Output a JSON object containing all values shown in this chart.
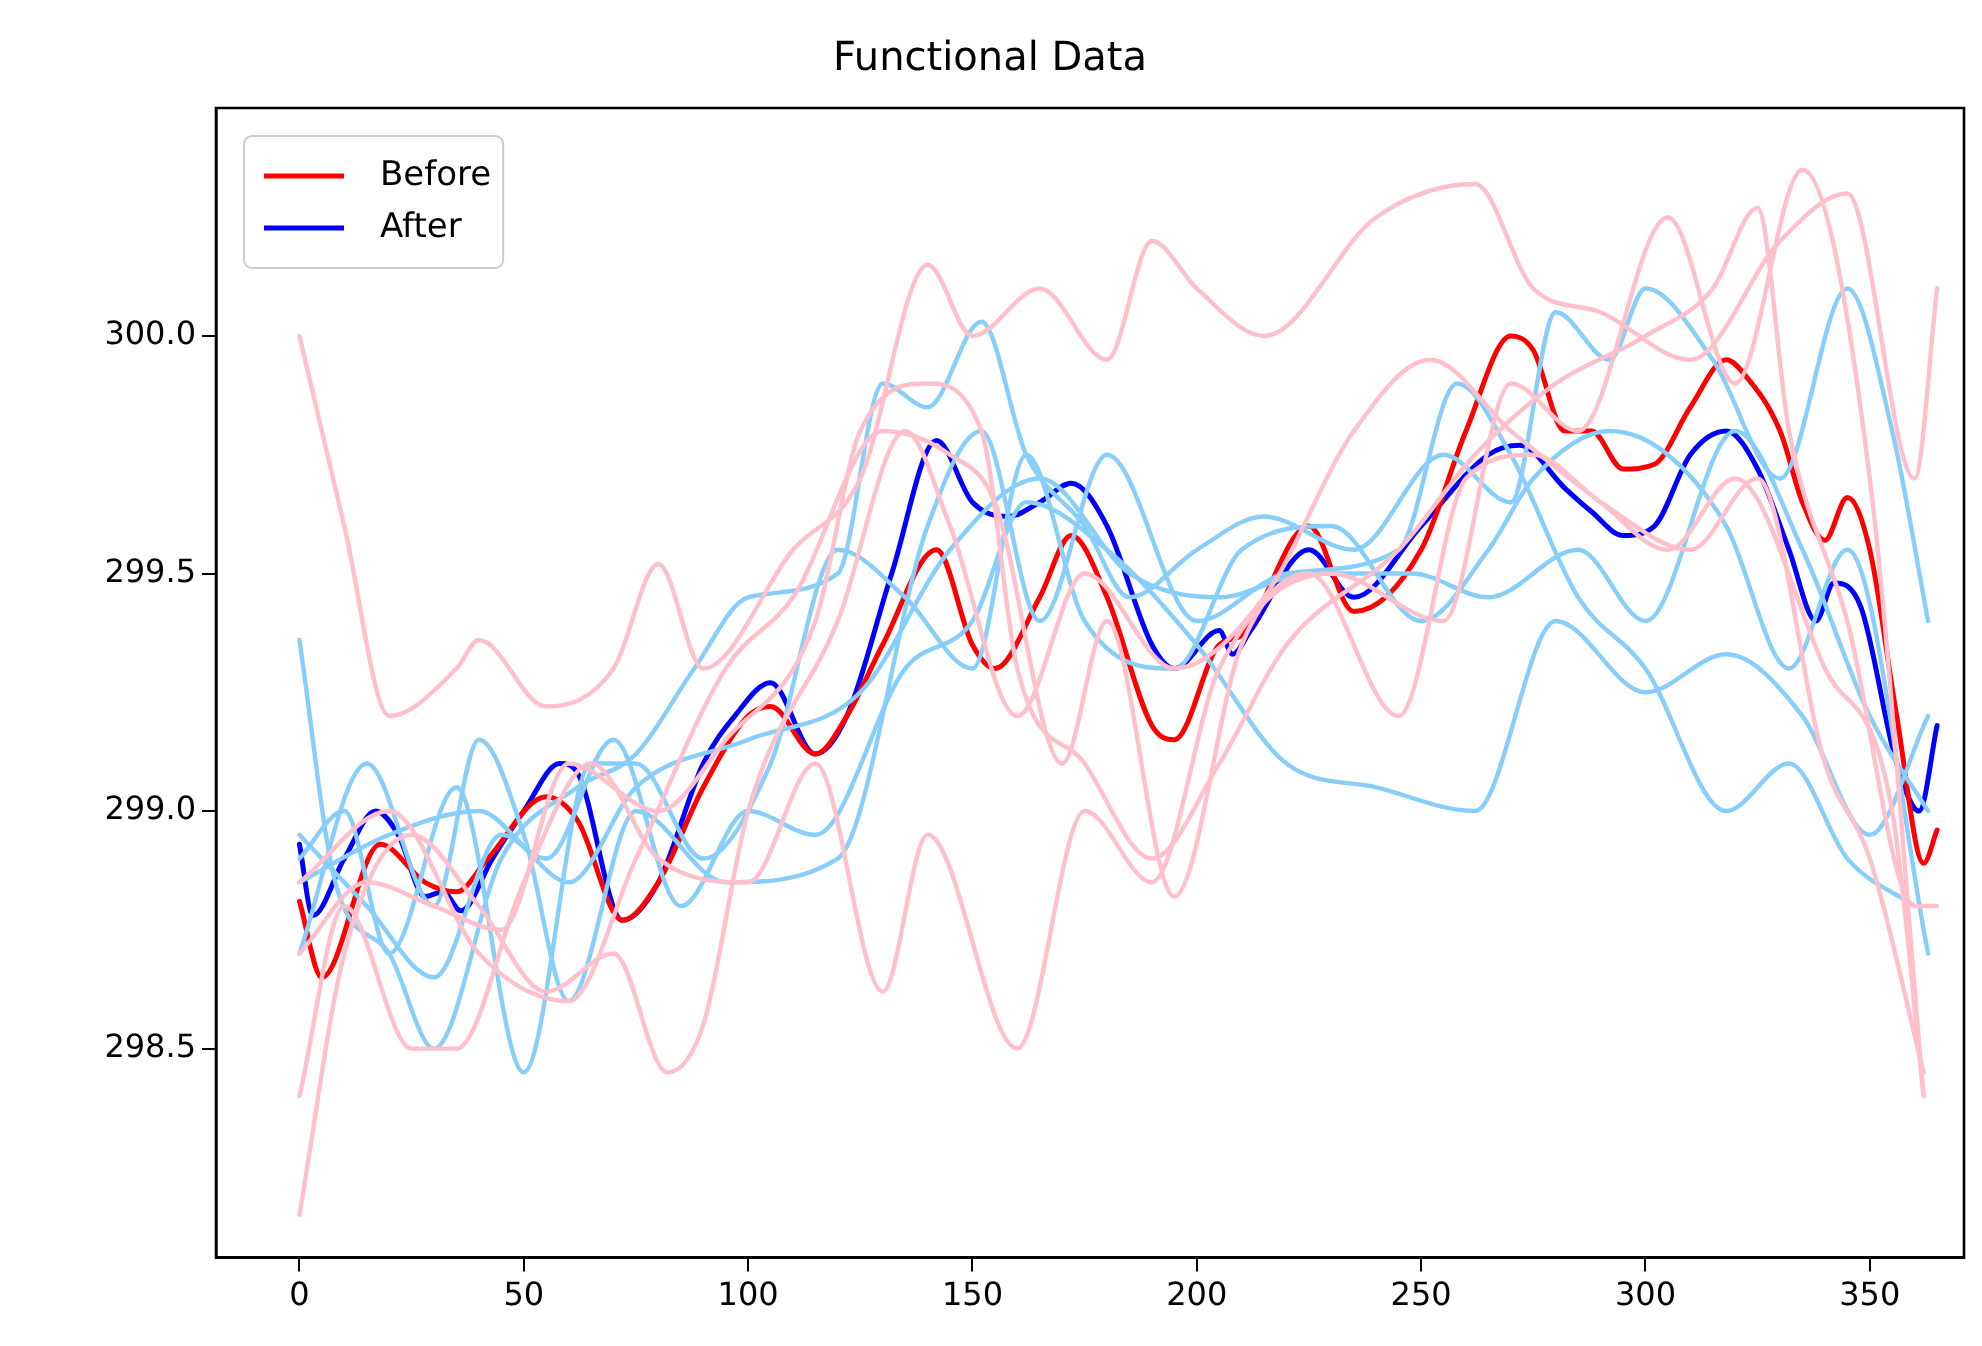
{
  "chart_data": {
    "type": "line",
    "title": "Functional Data",
    "marker": "none",
    "line_style": "solid",
    "grid": false,
    "legend": "top left",
    "xlim": [
      -18.6,
      371
    ],
    "xticks": [
      0,
      50,
      100,
      150,
      200,
      250,
      300,
      350
    ],
    "ylim": [
      298.06,
      300.48
    ],
    "yticks": [
      {
        "value": 298.5,
        "label": "298.5"
      },
      {
        "value": 299,
        "label": "299.0"
      },
      {
        "value": 299.5,
        "label": "299.5"
      },
      {
        "value": 300,
        "label": "300.0"
      }
    ],
    "series": [
      {
        "color": "#ffc0cb",
        "x": [
          0,
          10,
          20,
          35,
          40,
          55,
          70,
          80,
          90,
          110,
          125,
          140,
          150,
          165,
          180,
          190,
          200,
          215,
          240,
          262,
          275,
          290,
          310,
          330,
          345,
          360,
          365
        ],
        "values": [
          300.0,
          299.6,
          299.2,
          299.3,
          299.36,
          299.22,
          299.3,
          299.52,
          299.3,
          299.55,
          299.7,
          300.15,
          300.0,
          300.1,
          299.95,
          300.2,
          300.1,
          300.0,
          300.25,
          300.32,
          300.1,
          300.05,
          299.95,
          300.2,
          300.3,
          299.7,
          300.1
        ]
      },
      {
        "color": "#ffc0cb",
        "x": [
          0,
          10,
          25,
          40,
          55,
          70,
          82,
          90,
          100,
          120,
          135,
          145,
          160,
          175,
          195,
          215,
          235,
          252,
          270,
          290,
          305,
          320,
          340,
          355,
          362
        ],
        "values": [
          298.15,
          298.7,
          298.95,
          298.8,
          298.62,
          298.7,
          298.45,
          298.55,
          299.0,
          299.4,
          299.8,
          299.6,
          299.2,
          299.5,
          299.3,
          299.45,
          299.8,
          299.95,
          299.8,
          299.65,
          299.55,
          299.7,
          299.3,
          299.0,
          298.4
        ]
      },
      {
        "color": "#ffc0cb",
        "x": [
          0,
          10,
          25,
          35,
          50,
          65,
          80,
          100,
          115,
          130,
          140,
          160,
          175,
          190,
          205,
          230,
          255,
          270,
          285,
          305,
          320,
          335,
          350,
          362
        ],
        "values": [
          298.4,
          298.8,
          298.5,
          298.5,
          298.85,
          299.1,
          298.9,
          298.85,
          299.1,
          298.62,
          298.95,
          298.5,
          299.0,
          298.85,
          299.3,
          299.5,
          299.4,
          299.9,
          299.8,
          300.25,
          299.9,
          300.35,
          299.7,
          298.4
        ]
      },
      {
        "color": "#ffc0cb",
        "x": [
          0,
          20,
          40,
          60,
          75,
          95,
          110,
          130,
          145,
          155,
          170,
          180,
          195,
          210,
          225,
          245,
          260,
          275,
          290,
          310,
          325,
          340,
          350,
          362
        ],
        "values": [
          298.85,
          299.0,
          298.7,
          298.6,
          298.9,
          299.3,
          299.45,
          299.8,
          299.75,
          299.65,
          299.1,
          299.4,
          298.82,
          299.35,
          299.5,
          299.2,
          299.7,
          299.75,
          299.65,
          299.55,
          299.7,
          299.1,
          298.9,
          298.45
        ]
      },
      {
        "color": "#ffc0cb",
        "x": [
          0,
          15,
          30,
          45,
          60,
          80,
          95,
          115,
          125,
          140,
          152,
          160,
          175,
          190,
          205,
          220,
          245,
          262,
          280,
          300,
          315,
          325,
          332,
          345,
          360,
          365
        ],
        "values": [
          298.7,
          298.85,
          298.8,
          298.75,
          299.1,
          299.0,
          299.15,
          299.4,
          299.8,
          299.9,
          299.8,
          299.3,
          299.1,
          298.9,
          299.1,
          299.35,
          299.55,
          299.75,
          299.9,
          300.0,
          300.1,
          300.27,
          299.8,
          299.4,
          298.8,
          298.8
        ]
      },
      {
        "color": "#87cefa",
        "x": [
          0,
          8,
          20,
          30,
          45,
          62,
          75,
          88,
          100,
          120,
          130,
          140,
          152,
          162,
          175,
          185,
          200,
          215,
          235,
          255,
          270,
          280,
          292,
          300,
          315,
          330,
          345,
          355,
          363
        ],
        "values": [
          299.36,
          298.85,
          298.7,
          298.5,
          298.9,
          299.05,
          299.12,
          299.3,
          299.45,
          299.5,
          299.9,
          299.85,
          300.03,
          299.75,
          299.6,
          299.45,
          299.55,
          299.62,
          299.55,
          299.75,
          299.65,
          300.05,
          299.95,
          300.1,
          299.95,
          299.7,
          300.1,
          299.8,
          299.4
        ]
      },
      {
        "color": "#87cefa",
        "x": [
          0,
          15,
          30,
          40,
          50,
          60,
          75,
          95,
          120,
          140,
          152,
          165,
          180,
          200,
          220,
          245,
          258,
          270,
          285,
          300,
          318,
          332,
          345,
          360
        ],
        "values": [
          298.7,
          299.1,
          298.8,
          299.15,
          298.95,
          298.6,
          299.0,
          298.85,
          298.9,
          299.6,
          299.8,
          299.4,
          299.75,
          299.4,
          299.5,
          299.55,
          299.9,
          299.75,
          299.45,
          299.3,
          299.0,
          299.1,
          298.9,
          298.8
        ]
      },
      {
        "color": "#87cefa",
        "x": [
          0,
          10,
          20,
          35,
          50,
          65,
          75,
          90,
          105,
          120,
          135,
          150,
          162,
          175,
          195,
          210,
          230,
          250,
          265,
          275,
          292,
          305,
          318,
          332,
          345,
          363
        ],
        "values": [
          298.9,
          299.0,
          298.7,
          299.05,
          298.45,
          299.1,
          299.1,
          298.9,
          299.1,
          299.55,
          299.45,
          299.3,
          299.75,
          299.4,
          299.3,
          299.55,
          299.6,
          299.4,
          299.55,
          299.7,
          299.8,
          299.75,
          299.6,
          299.3,
          299.55,
          298.7
        ]
      },
      {
        "color": "#87cefa",
        "x": [
          0,
          20,
          40,
          55,
          70,
          85,
          100,
          115,
          135,
          150,
          162,
          180,
          200,
          220,
          240,
          262,
          280,
          300,
          318,
          335,
          350,
          363
        ],
        "values": [
          298.85,
          298.95,
          299.0,
          298.9,
          299.15,
          298.8,
          299.0,
          298.95,
          299.3,
          299.4,
          299.65,
          299.55,
          299.35,
          299.1,
          299.05,
          299.0,
          299.4,
          299.25,
          299.33,
          299.2,
          298.95,
          299.2
        ]
      },
      {
        "color": "#87cefa",
        "x": [
          0,
          15,
          30,
          45,
          60,
          75,
          100,
          125,
          145,
          165,
          185,
          205,
          225,
          248,
          265,
          285,
          300,
          320,
          335,
          350,
          363
        ],
        "values": [
          298.95,
          298.8,
          298.65,
          298.95,
          298.85,
          299.05,
          299.15,
          299.25,
          299.55,
          299.7,
          299.5,
          299.45,
          299.5,
          299.5,
          299.45,
          299.55,
          299.4,
          299.8,
          299.55,
          299.2,
          299.0
        ]
      },
      {
        "name": "Before",
        "color": "#ff0000",
        "x": [
          0,
          5,
          18,
          28,
          35,
          42,
          55,
          62,
          72,
          80,
          90,
          100,
          105,
          115,
          122,
          130,
          142,
          150,
          155,
          165,
          172,
          180,
          190,
          195,
          205,
          210,
          225,
          235,
          250,
          260,
          270,
          275,
          282,
          288,
          295,
          302,
          310,
          318,
          322,
          330,
          335,
          340,
          345,
          350,
          356,
          362,
          365
        ],
        "values": [
          298.81,
          298.65,
          298.93,
          298.85,
          298.83,
          298.9,
          299.03,
          298.98,
          298.77,
          298.85,
          299.05,
          299.2,
          299.22,
          299.12,
          299.2,
          299.35,
          299.55,
          299.35,
          299.3,
          299.45,
          299.58,
          299.45,
          299.18,
          299.15,
          299.35,
          299.37,
          299.6,
          299.42,
          299.55,
          299.8,
          300.0,
          299.97,
          299.8,
          299.8,
          299.72,
          299.73,
          299.85,
          299.95,
          299.92,
          299.8,
          299.65,
          299.57,
          299.66,
          299.55,
          299.2,
          298.89,
          298.96
        ]
      },
      {
        "name": "After",
        "color": "#0000ff",
        "x": [
          0,
          3,
          10,
          17,
          22,
          28,
          32,
          36,
          43,
          50,
          58,
          62,
          72,
          80,
          90,
          97,
          105,
          115,
          122,
          132,
          142,
          150,
          158,
          165,
          172,
          180,
          190,
          195,
          205,
          208,
          212,
          225,
          235,
          250,
          265,
          272,
          282,
          288,
          295,
          302,
          310,
          318,
          325,
          332,
          338,
          342,
          348,
          356,
          361,
          365
        ],
        "values": [
          298.93,
          298.78,
          298.9,
          299.0,
          298.95,
          298.82,
          298.83,
          298.79,
          298.9,
          299.0,
          299.1,
          299.08,
          298.77,
          298.85,
          299.1,
          299.2,
          299.27,
          299.12,
          299.2,
          299.5,
          299.78,
          299.65,
          299.62,
          299.65,
          299.69,
          299.6,
          299.35,
          299.3,
          299.38,
          299.33,
          299.38,
          299.55,
          299.45,
          299.6,
          299.75,
          299.77,
          299.68,
          299.63,
          299.58,
          299.6,
          299.75,
          299.8,
          299.72,
          299.55,
          299.4,
          299.48,
          299.43,
          299.1,
          299.0,
          299.18
        ]
      }
    ]
  }
}
